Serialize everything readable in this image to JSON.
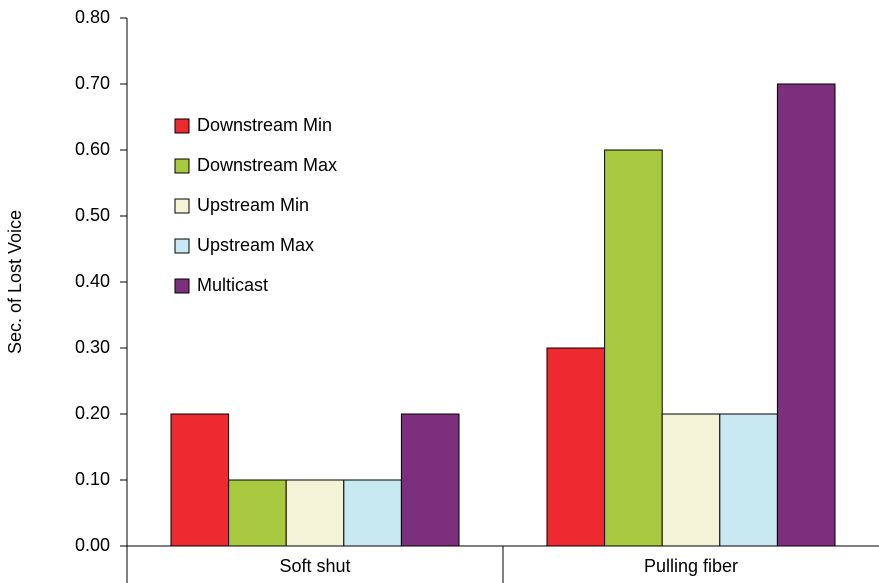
{
  "chart_data": {
    "type": "bar",
    "y_label": "Sec. of Lost Voice",
    "categories": [
      "Soft shut",
      "Pulling fiber"
    ],
    "series": [
      {
        "name": "Downstream Min",
        "color": "#ed2a2f",
        "values": [
          0.2,
          0.3
        ]
      },
      {
        "name": "Downstream Max",
        "color": "#a8c83f",
        "values": [
          0.1,
          0.6
        ]
      },
      {
        "name": "Upstream Min",
        "color": "#f5f3d7",
        "values": [
          0.1,
          0.2
        ]
      },
      {
        "name": "Upstream Max",
        "color": "#c8e8f2",
        "values": [
          0.1,
          0.2
        ]
      },
      {
        "name": "Multicast",
        "color": "#7b2f7c",
        "values": [
          0.2,
          0.7
        ]
      }
    ],
    "ylim": [
      0,
      0.8
    ],
    "yticks": [
      {
        "value": 0,
        "label": "0.00"
      },
      {
        "value": 0.1,
        "label": "0.10"
      },
      {
        "value": 0.2,
        "label": "0.20"
      },
      {
        "value": 0.3,
        "label": "0.30"
      },
      {
        "value": 0.4,
        "label": "0.40"
      },
      {
        "value": 0.5,
        "label": "0.50"
      },
      {
        "value": 0.6,
        "label": "0.60"
      },
      {
        "value": 0.7,
        "label": "0.70"
      },
      {
        "value": 0.8,
        "label": "0.80"
      }
    ],
    "legend": "upper left"
  }
}
